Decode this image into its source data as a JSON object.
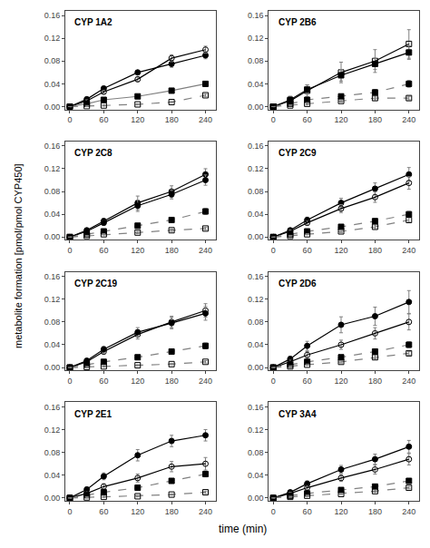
{
  "chart_data": {
    "type": "line",
    "x_label": "time (min)",
    "y_label": "metabolite formation [pmol/pmol CYP450]",
    "x": [
      0,
      30,
      60,
      120,
      180,
      240
    ],
    "xlim": [
      -8,
      258
    ],
    "xticks": [
      0,
      60,
      120,
      180,
      240
    ],
    "ylim": [
      -0.005,
      0.168
    ],
    "yticks": [
      {
        "value": 0.0,
        "label": "0.00"
      },
      0.04,
      0.08,
      0.12,
      0.16
    ],
    "grid": false,
    "subplots": [
      {
        "title": "CYP 1A2",
        "series": [
          {
            "marker": "circle",
            "line_style": "solid",
            "color": "black",
            "values": [
              0.0,
              0.013,
              0.032,
              0.06,
              0.075,
              0.09
            ],
            "errors": [
              0.0,
              0.002,
              0.003,
              0.004,
              0.006,
              0.006
            ]
          },
          {
            "marker": "circle-open",
            "line_style": "solid",
            "color": "black",
            "values": [
              0.0,
              0.01,
              0.026,
              0.048,
              0.085,
              0.1
            ],
            "errors": [
              0.0,
              0.002,
              0.003,
              0.004,
              0.006,
              0.006
            ]
          },
          {
            "marker": "square",
            "line_style": "solid",
            "color": "gray",
            "values": [
              0.0,
              0.005,
              0.012,
              0.018,
              0.028,
              0.04
            ],
            "errors": [
              0.0,
              0.001,
              0.002,
              0.002,
              0.003,
              0.003
            ]
          },
          {
            "marker": "square-open",
            "line_style": "dashed",
            "color": "gray",
            "values": [
              0.0,
              0.001,
              0.002,
              0.004,
              0.008,
              0.02
            ],
            "errors": [
              0.0,
              0.001,
              0.001,
              0.001,
              0.001,
              0.002
            ]
          }
        ]
      },
      {
        "title": "CYP 2B6",
        "series": [
          {
            "marker": "square-open",
            "line_style": "solid",
            "color": "black",
            "values": [
              0.0,
              0.01,
              0.028,
              0.06,
              0.08,
              0.11
            ],
            "errors": [
              0.0,
              0.008,
              0.01,
              0.018,
              0.02,
              0.025
            ]
          },
          {
            "marker": "square",
            "line_style": "solid",
            "color": "black",
            "values": [
              0.0,
              0.012,
              0.03,
              0.055,
              0.075,
              0.095
            ],
            "errors": [
              0.0,
              0.006,
              0.008,
              0.01,
              0.01,
              0.012
            ]
          },
          {
            "marker": "square",
            "line_style": "dashed",
            "color": "gray",
            "values": [
              0.0,
              0.005,
              0.012,
              0.018,
              0.025,
              0.04
            ],
            "errors": [
              0.0,
              0.002,
              0.003,
              0.004,
              0.005,
              0.006
            ]
          },
          {
            "marker": "square-open",
            "line_style": "dashed",
            "color": "gray",
            "values": [
              0.0,
              0.002,
              0.005,
              0.01,
              0.015,
              0.015
            ],
            "errors": [
              0.0,
              0.001,
              0.002,
              0.002,
              0.003,
              0.003
            ]
          }
        ]
      },
      {
        "title": "CYP 2C8",
        "series": [
          {
            "marker": "circle",
            "line_style": "solid",
            "color": "black",
            "values": [
              0.0,
              0.012,
              0.028,
              0.06,
              0.08,
              0.11
            ],
            "errors": [
              0.0,
              0.003,
              0.005,
              0.012,
              0.01,
              0.01
            ]
          },
          {
            "marker": "circle",
            "line_style": "solid",
            "color": "black",
            "values": [
              0.0,
              0.01,
              0.025,
              0.055,
              0.075,
              0.1
            ],
            "errors": [
              0.0,
              0.003,
              0.004,
              0.01,
              0.008,
              0.009
            ]
          },
          {
            "marker": "square",
            "line_style": "dashed",
            "color": "gray",
            "values": [
              0.0,
              0.005,
              0.01,
              0.02,
              0.03,
              0.045
            ],
            "errors": [
              0.0,
              0.002,
              0.003,
              0.003,
              0.004,
              0.005
            ]
          },
          {
            "marker": "square-open",
            "line_style": "dashed",
            "color": "gray",
            "values": [
              0.0,
              0.002,
              0.005,
              0.008,
              0.012,
              0.015
            ],
            "errors": [
              0.0,
              0.001,
              0.001,
              0.002,
              0.002,
              0.002
            ]
          }
        ]
      },
      {
        "title": "CYP 2C9",
        "series": [
          {
            "marker": "circle",
            "line_style": "solid",
            "color": "black",
            "values": [
              0.0,
              0.012,
              0.03,
              0.06,
              0.085,
              0.11
            ],
            "errors": [
              0.0,
              0.003,
              0.005,
              0.008,
              0.01,
              0.012
            ]
          },
          {
            "marker": "circle-open",
            "line_style": "solid",
            "color": "black",
            "values": [
              0.0,
              0.01,
              0.025,
              0.05,
              0.07,
              0.095
            ],
            "errors": [
              0.0,
              0.003,
              0.004,
              0.007,
              0.009,
              0.011
            ]
          },
          {
            "marker": "square",
            "line_style": "dashed",
            "color": "gray",
            "values": [
              0.0,
              0.005,
              0.01,
              0.018,
              0.028,
              0.04
            ],
            "errors": [
              0.0,
              0.002,
              0.002,
              0.003,
              0.004,
              0.005
            ]
          },
          {
            "marker": "square-open",
            "line_style": "dashed",
            "color": "gray",
            "values": [
              0.0,
              0.002,
              0.005,
              0.01,
              0.018,
              0.03
            ],
            "errors": [
              0.0,
              0.001,
              0.001,
              0.002,
              0.003,
              0.004
            ]
          }
        ]
      },
      {
        "title": "CYP 2C19",
        "series": [
          {
            "marker": "circle-open",
            "line_style": "solid",
            "color": "black",
            "values": [
              0.0,
              0.01,
              0.028,
              0.058,
              0.08,
              0.1
            ],
            "errors": [
              0.0,
              0.003,
              0.005,
              0.008,
              0.01,
              0.012
            ]
          },
          {
            "marker": "circle",
            "line_style": "solid",
            "color": "black",
            "values": [
              0.0,
              0.012,
              0.032,
              0.062,
              0.078,
              0.095
            ],
            "errors": [
              0.0,
              0.003,
              0.005,
              0.008,
              0.01,
              0.012
            ]
          },
          {
            "marker": "square",
            "line_style": "dashed",
            "color": "gray",
            "values": [
              0.0,
              0.005,
              0.01,
              0.018,
              0.028,
              0.038
            ],
            "errors": [
              0.0,
              0.002,
              0.003,
              0.003,
              0.004,
              0.005
            ]
          },
          {
            "marker": "square-open",
            "line_style": "dashed",
            "color": "gray",
            "values": [
              0.0,
              0.001,
              0.002,
              0.004,
              0.006,
              0.01
            ],
            "errors": [
              0.0,
              0.001,
              0.001,
              0.001,
              0.001,
              0.002
            ]
          }
        ]
      },
      {
        "title": "CYP 2D6",
        "series": [
          {
            "marker": "circle",
            "line_style": "solid",
            "color": "black",
            "values": [
              0.0,
              0.015,
              0.038,
              0.075,
              0.09,
              0.115
            ],
            "errors": [
              0.0,
              0.005,
              0.008,
              0.014,
              0.016,
              0.02
            ]
          },
          {
            "marker": "circle-open",
            "line_style": "solid",
            "color": "black",
            "values": [
              0.0,
              0.01,
              0.022,
              0.04,
              0.06,
              0.08
            ],
            "errors": [
              0.0,
              0.004,
              0.006,
              0.008,
              0.01,
              0.014
            ]
          },
          {
            "marker": "square",
            "line_style": "dashed",
            "color": "gray",
            "values": [
              0.0,
              0.005,
              0.01,
              0.018,
              0.028,
              0.04
            ],
            "errors": [
              0.0,
              0.002,
              0.003,
              0.003,
              0.004,
              0.005
            ]
          },
          {
            "marker": "square-open",
            "line_style": "dashed",
            "color": "gray",
            "values": [
              0.0,
              0.002,
              0.005,
              0.01,
              0.018,
              0.025
            ],
            "errors": [
              0.0,
              0.001,
              0.001,
              0.002,
              0.003,
              0.003
            ]
          }
        ]
      },
      {
        "title": "CYP 2E1",
        "series": [
          {
            "marker": "circle",
            "line_style": "solid",
            "color": "black",
            "values": [
              0.0,
              0.015,
              0.038,
              0.075,
              0.1,
              0.11
            ],
            "errors": [
              0.0,
              0.004,
              0.006,
              0.01,
              0.01,
              0.01
            ]
          },
          {
            "marker": "circle-open",
            "line_style": "solid",
            "color": "black",
            "values": [
              0.0,
              0.008,
              0.02,
              0.035,
              0.055,
              0.06
            ],
            "errors": [
              0.0,
              0.003,
              0.005,
              0.007,
              0.009,
              0.011
            ]
          },
          {
            "marker": "square",
            "line_style": "dashed",
            "color": "gray",
            "values": [
              0.0,
              0.005,
              0.01,
              0.018,
              0.03,
              0.042
            ],
            "errors": [
              0.0,
              0.002,
              0.003,
              0.003,
              0.004,
              0.005
            ]
          },
          {
            "marker": "square-open",
            "line_style": "dashed",
            "color": "gray",
            "values": [
              0.0,
              0.001,
              0.002,
              0.003,
              0.006,
              0.01
            ],
            "errors": [
              0.0,
              0.001,
              0.001,
              0.001,
              0.001,
              0.002
            ]
          }
        ]
      },
      {
        "title": "CYP 3A4",
        "series": [
          {
            "marker": "circle",
            "line_style": "solid",
            "color": "black",
            "values": [
              0.0,
              0.01,
              0.025,
              0.05,
              0.068,
              0.09
            ],
            "errors": [
              0.0,
              0.003,
              0.005,
              0.007,
              0.009,
              0.011
            ]
          },
          {
            "marker": "circle-open",
            "line_style": "solid",
            "color": "black",
            "values": [
              0.0,
              0.008,
              0.018,
              0.035,
              0.05,
              0.068
            ],
            "errors": [
              0.0,
              0.002,
              0.004,
              0.006,
              0.008,
              0.01
            ]
          },
          {
            "marker": "square",
            "line_style": "dashed",
            "color": "gray",
            "values": [
              0.0,
              0.004,
              0.008,
              0.014,
              0.02,
              0.03
            ],
            "errors": [
              0.0,
              0.001,
              0.002,
              0.002,
              0.003,
              0.004
            ]
          },
          {
            "marker": "square-open",
            "line_style": "dashed",
            "color": "gray",
            "values": [
              0.0,
              0.002,
              0.004,
              0.007,
              0.012,
              0.018
            ],
            "errors": [
              0.0,
              0.001,
              0.001,
              0.001,
              0.002,
              0.002
            ]
          }
        ]
      }
    ]
  }
}
